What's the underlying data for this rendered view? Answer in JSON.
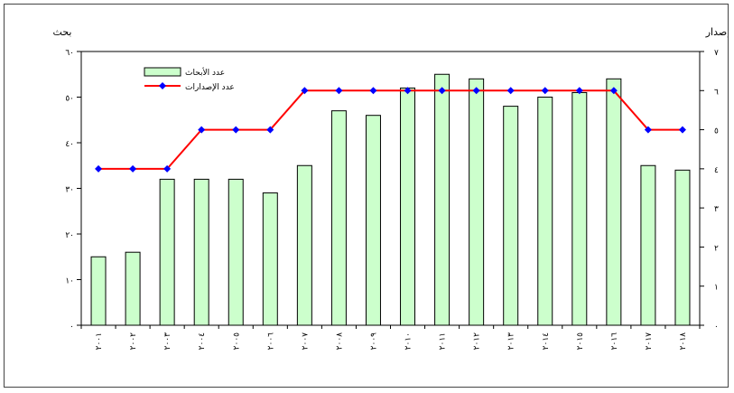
{
  "chart_data": {
    "type": "bar",
    "title": "",
    "left_axis_label": "بحث",
    "right_axis_label": "إصدار",
    "categories": [
      "٢٠٠١",
      "٢٠٠٢",
      "٢٠٠٣",
      "٢٠٠٤",
      "٢٠٠٥",
      "٢٠٠٦",
      "٢٠٠٧",
      "٢٠٠٨",
      "٢٠٠٩",
      "٢٠١٠",
      "٢٠١١",
      "٢٠١٢",
      "٢٠١٣",
      "٢٠١٤",
      "٢٠١٥",
      "٢٠١٦",
      "٢٠١٧",
      "٢٠١٨"
    ],
    "ylim_left": [
      0,
      60
    ],
    "left_ticks": [
      "٠",
      "١٠",
      "٢٠",
      "٣٠",
      "٤٠",
      "٥٠",
      "٦٠"
    ],
    "ylim_right": [
      0,
      7
    ],
    "right_ticks": [
      "٠",
      "١",
      "٢",
      "٣",
      "٤",
      "٥",
      "٦",
      "٧"
    ],
    "series": [
      {
        "name": "عدد الأبحاث",
        "kind": "bar",
        "axis": "left",
        "color": "#ccffcc",
        "values": [
          15,
          16,
          32,
          32,
          32,
          29,
          35,
          47,
          46,
          52,
          55,
          54,
          48,
          50,
          51,
          54,
          35,
          34
        ]
      },
      {
        "name": "عدد الإصدارات",
        "kind": "line",
        "axis": "right",
        "color": "#ff0000",
        "marker_color": "#0000ff",
        "values": [
          4,
          4,
          4,
          5,
          5,
          5,
          6,
          6,
          6,
          6,
          6,
          6,
          6,
          6,
          6,
          6,
          5,
          5
        ]
      }
    ],
    "grid": false,
    "legend_position": "top-left"
  }
}
